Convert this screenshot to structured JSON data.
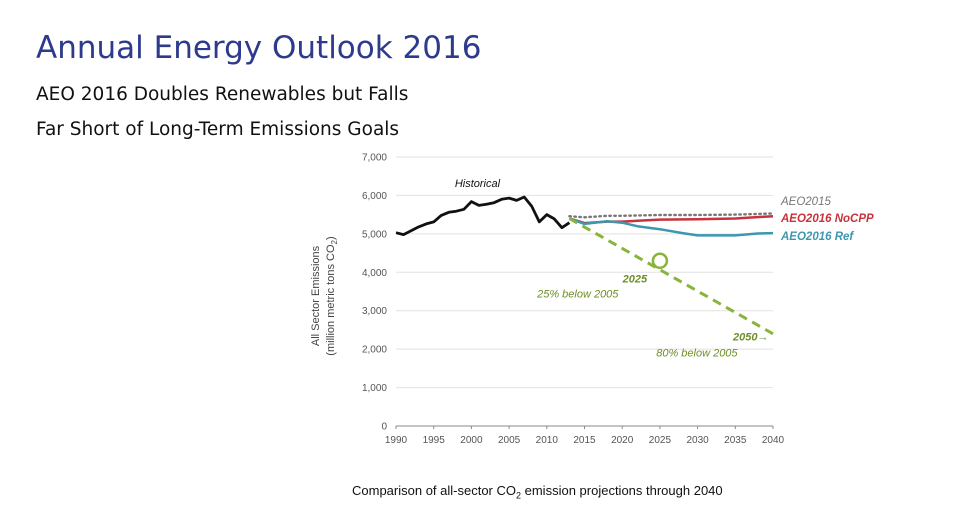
{
  "slide": {
    "title": "Annual Energy Outlook 2016",
    "subtitle_line1": "AEO 2016 Doubles Renewables but Falls",
    "subtitle_line2": "Far Short of Long-Term Emissions Goals",
    "caption_pre": "Comparison of all-sector CO",
    "caption_sub": "2",
    "caption_post": " emission projections through 2040"
  },
  "chart_data": {
    "type": "line",
    "title": "",
    "ylabel_line1": "All Sector Emissions",
    "ylabel_line2_pre": "(million metric tons CO",
    "ylabel_line2_sub": "2",
    "ylabel_line2_post": ")",
    "xlim": [
      1990,
      2040
    ],
    "ylim": [
      0,
      7000
    ],
    "x_ticks": [
      1990,
      1995,
      2000,
      2005,
      2010,
      2015,
      2020,
      2025,
      2030,
      2035,
      2040
    ],
    "y_ticks": [
      0,
      1000,
      2000,
      3000,
      4000,
      5000,
      6000,
      7000
    ],
    "y_tick_labels": [
      "0",
      "1,000",
      "2,000",
      "3,000",
      "4,000",
      "5,000",
      "6,000",
      "7,000"
    ],
    "grid": "horizontal",
    "series": [
      {
        "name": "Historical",
        "color": "#111111",
        "style": "solid",
        "x": [
          1990,
          1991,
          1992,
          1993,
          1994,
          1995,
          1996,
          1997,
          1998,
          1999,
          2000,
          2001,
          2002,
          2003,
          2004,
          2005,
          2006,
          2007,
          2008,
          2009,
          2010,
          2011,
          2012,
          2013
        ],
        "y": [
          5030,
          4980,
          5080,
          5180,
          5260,
          5310,
          5480,
          5560,
          5590,
          5640,
          5840,
          5740,
          5770,
          5810,
          5900,
          5930,
          5870,
          5960,
          5720,
          5310,
          5500,
          5390,
          5160,
          5290
        ]
      },
      {
        "name": "AEO2015",
        "color": "#777777",
        "style": "dotted",
        "x": [
          2013,
          2015,
          2018,
          2020,
          2025,
          2030,
          2035,
          2040
        ],
        "y": [
          5460,
          5430,
          5470,
          5470,
          5490,
          5490,
          5500,
          5530
        ]
      },
      {
        "name": "AEO2016 NoCPP",
        "color": "#c8323c",
        "style": "solid",
        "x": [
          2013,
          2015,
          2018,
          2020,
          2023,
          2025,
          2030,
          2035,
          2040
        ],
        "y": [
          5400,
          5280,
          5320,
          5320,
          5350,
          5370,
          5380,
          5400,
          5460
        ]
      },
      {
        "name": "AEO2016 Ref",
        "color": "#3d97b0",
        "style": "solid",
        "x": [
          2013,
          2015,
          2018,
          2020,
          2022,
          2025,
          2028,
          2030,
          2035,
          2038,
          2040
        ],
        "y": [
          5400,
          5260,
          5330,
          5290,
          5200,
          5120,
          5020,
          4960,
          4960,
          5010,
          5020
        ]
      },
      {
        "name": "Target",
        "color": "#88b43c",
        "style": "dashed",
        "x": [
          2013,
          2040
        ],
        "y": [
          5400,
          2400
        ]
      }
    ],
    "annotations": [
      {
        "text": "Historical",
        "x": 2003.8,
        "y": 6220,
        "color": "#111111"
      },
      {
        "text": "2025",
        "x": 2023.3,
        "y": 3740,
        "color": "#6c8f25",
        "bold": true
      },
      {
        "text": "25% below 2005",
        "x": 2019.5,
        "y": 3340,
        "color": "#6c8f25"
      },
      {
        "text": "2050→",
        "x": 2039.4,
        "y": 2220,
        "color": "#6c8f25",
        "bold": true
      },
      {
        "text": "80% below 2005",
        "x": 2035.3,
        "y": 1810,
        "color": "#6c8f25"
      }
    ],
    "marker": {
      "x": 2025,
      "y": 4300,
      "color": "#88b43c"
    }
  }
}
